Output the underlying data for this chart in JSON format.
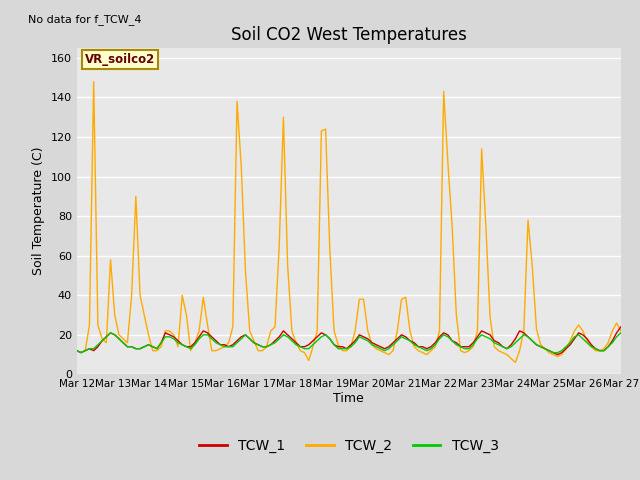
{
  "title": "Soil CO2 West Temperatures",
  "no_data_text": "No data for f_TCW_4",
  "ylabel": "Soil Temperature (C)",
  "xlabel": "Time",
  "annotation_box": "VR_soilco2",
  "ylim": [
    0,
    165
  ],
  "yticks": [
    0,
    20,
    40,
    60,
    80,
    100,
    120,
    140,
    160
  ],
  "xtick_labels": [
    "Mar 12",
    "Mar 13",
    "Mar 14",
    "Mar 15",
    "Mar 16",
    "Mar 17",
    "Mar 18",
    "Mar 19",
    "Mar 20",
    "Mar 21",
    "Mar 22",
    "Mar 23",
    "Mar 24",
    "Mar 25",
    "Mar 26",
    "Mar 27"
  ],
  "fig_bg_color": "#d8d8d8",
  "plot_bg_color": "#e8e8e8",
  "tcw1_color": "#cc0000",
  "tcw2_color": "#ffaa00",
  "tcw3_color": "#00cc00",
  "legend_entries": [
    "TCW_1",
    "TCW_2",
    "TCW_3"
  ],
  "tcw1": [
    12,
    11,
    12,
    13,
    12,
    14,
    17,
    19,
    21,
    20,
    18,
    16,
    14,
    14,
    13,
    13,
    14,
    15,
    14,
    13,
    16,
    21,
    20,
    19,
    17,
    15,
    14,
    14,
    16,
    19,
    22,
    21,
    19,
    17,
    15,
    15,
    14,
    15,
    17,
    19,
    20,
    18,
    16,
    15,
    14,
    14,
    15,
    17,
    19,
    22,
    20,
    18,
    16,
    14,
    14,
    15,
    17,
    19,
    21,
    20,
    18,
    15,
    14,
    14,
    13,
    15,
    17,
    20,
    19,
    18,
    16,
    15,
    14,
    13,
    14,
    16,
    18,
    20,
    19,
    17,
    16,
    14,
    14,
    13,
    14,
    16,
    19,
    21,
    20,
    17,
    16,
    14,
    14,
    14,
    16,
    19,
    22,
    21,
    20,
    17,
    16,
    14,
    13,
    15,
    18,
    22,
    21,
    19,
    17,
    15,
    14,
    13,
    12,
    11,
    10,
    11,
    13,
    15,
    18,
    21,
    20,
    18,
    15,
    13,
    12,
    12,
    14,
    17,
    21,
    24
  ],
  "tcw2": [
    12,
    11,
    12,
    25,
    148,
    25,
    18,
    16,
    58,
    30,
    20,
    18,
    16,
    40,
    90,
    40,
    30,
    20,
    12,
    12,
    14,
    22,
    22,
    20,
    14,
    40,
    30,
    12,
    16,
    22,
    39,
    25,
    12,
    12,
    13,
    14,
    16,
    24,
    138,
    105,
    52,
    22,
    17,
    12,
    12,
    14,
    22,
    24,
    65,
    130,
    55,
    22,
    16,
    12,
    11,
    7,
    14,
    22,
    123,
    124,
    63,
    22,
    15,
    12,
    12,
    14,
    22,
    38,
    38,
    22,
    15,
    13,
    12,
    11,
    10,
    12,
    22,
    38,
    39,
    22,
    14,
    12,
    11,
    10,
    12,
    14,
    22,
    143,
    107,
    75,
    30,
    12,
    11,
    12,
    14,
    22,
    114,
    75,
    29,
    14,
    12,
    11,
    10,
    8,
    6,
    12,
    22,
    78,
    55,
    23,
    15,
    13,
    11,
    10,
    9,
    10,
    13,
    17,
    22,
    25,
    22,
    17,
    14,
    12,
    12,
    13,
    16,
    22,
    26,
    22
  ],
  "tcw3": [
    12,
    11,
    12,
    13,
    13,
    15,
    17,
    19,
    21,
    20,
    18,
    16,
    14,
    14,
    13,
    13,
    14,
    15,
    14,
    13,
    16,
    19,
    19,
    18,
    16,
    15,
    14,
    13,
    15,
    18,
    20,
    20,
    18,
    16,
    15,
    14,
    14,
    14,
    16,
    18,
    20,
    18,
    16,
    15,
    14,
    14,
    15,
    16,
    18,
    20,
    19,
    17,
    15,
    14,
    13,
    13,
    15,
    17,
    19,
    20,
    18,
    15,
    13,
    13,
    13,
    14,
    16,
    19,
    18,
    17,
    15,
    14,
    13,
    12,
    13,
    15,
    17,
    19,
    18,
    17,
    15,
    14,
    13,
    12,
    13,
    15,
    18,
    20,
    19,
    17,
    15,
    14,
    13,
    13,
    15,
    18,
    20,
    19,
    18,
    16,
    15,
    14,
    13,
    14,
    16,
    18,
    20,
    19,
    17,
    15,
    14,
    13,
    12,
    11,
    11,
    12,
    14,
    16,
    19,
    20,
    18,
    16,
    14,
    13,
    12,
    12,
    14,
    16,
    19,
    21
  ]
}
